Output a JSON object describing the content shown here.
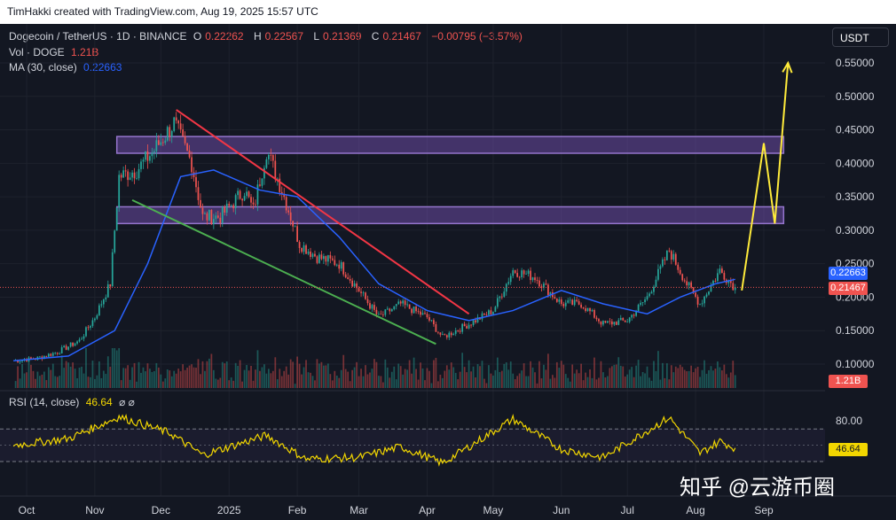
{
  "header": {
    "text": "TimHakki created with TradingView.com, Aug 19, 2025 15:57 UTC"
  },
  "legend": {
    "symbol": "Dogecoin / TetherUS · 1D · BINANCE",
    "o_label": "O",
    "o": "0.22262",
    "h_label": "H",
    "h": "0.22567",
    "l_label": "L",
    "l": "0.21369",
    "c_label": "C",
    "c": "0.21467",
    "change": "−0.00795 (−3.57%)",
    "vol_label": "Vol · DOGE",
    "vol": "1.21B",
    "ma_label": "MA (30, close)",
    "ma": "0.22663"
  },
  "currency_button": "USDT",
  "price_tags": {
    "ma": "0.22663",
    "close": "0.21467",
    "volume": "1.21B",
    "rsi": "46.64"
  },
  "rsi_legend": {
    "label": "RSI (14, close)",
    "value": "46.64",
    "icons": "⌀ ⌀"
  },
  "watermark": "知乎 @云游币圈",
  "colors": {
    "up": "#26a69a",
    "down": "#ef5350",
    "ma": "#2962ff",
    "rsi": "#f2d600",
    "zone": "#7e57c2",
    "projection": "#ffeb3b",
    "support": "#4caf50",
    "resistance": "#f23645"
  },
  "chart_data": {
    "type": "candlestick",
    "title": "Dogecoin / TetherUS · 1D · BINANCE",
    "x_ticks": [
      "Oct",
      "Nov",
      "Dec",
      "2025",
      "Feb",
      "Mar",
      "Apr",
      "May",
      "Jun",
      "Jul",
      "Aug",
      "Sep"
    ],
    "y_ticks": [
      "0.55000",
      "0.50000",
      "0.45000",
      "0.40000",
      "0.35000",
      "0.30000",
      "0.25000",
      "0.20000",
      "0.15000",
      "0.10000"
    ],
    "ylim": [
      0.08,
      0.57
    ],
    "price_path": [
      {
        "date": "2024-09-25",
        "close": 0.105
      },
      {
        "date": "2024-10-05",
        "close": 0.108
      },
      {
        "date": "2024-10-15",
        "close": 0.118
      },
      {
        "date": "2024-10-25",
        "close": 0.135
      },
      {
        "date": "2024-11-01",
        "close": 0.17
      },
      {
        "date": "2024-11-08",
        "close": 0.22
      },
      {
        "date": "2024-11-12",
        "close": 0.38
      },
      {
        "date": "2024-11-20",
        "close": 0.39
      },
      {
        "date": "2024-11-28",
        "close": 0.42
      },
      {
        "date": "2024-12-07",
        "close": 0.46
      },
      {
        "date": "2024-12-15",
        "close": 0.4
      },
      {
        "date": "2024-12-20",
        "close": 0.32
      },
      {
        "date": "2024-12-28",
        "close": 0.32
      },
      {
        "date": "2025-01-08",
        "close": 0.36
      },
      {
        "date": "2025-01-12",
        "close": 0.33
      },
      {
        "date": "2025-01-18",
        "close": 0.42
      },
      {
        "date": "2025-01-25",
        "close": 0.36
      },
      {
        "date": "2025-02-02",
        "close": 0.28
      },
      {
        "date": "2025-02-10",
        "close": 0.26
      },
      {
        "date": "2025-02-20",
        "close": 0.25
      },
      {
        "date": "2025-03-01",
        "close": 0.21
      },
      {
        "date": "2025-03-10",
        "close": 0.17
      },
      {
        "date": "2025-03-20",
        "close": 0.19
      },
      {
        "date": "2025-04-01",
        "close": 0.17
      },
      {
        "date": "2025-04-08",
        "close": 0.14
      },
      {
        "date": "2025-04-20",
        "close": 0.16
      },
      {
        "date": "2025-05-01",
        "close": 0.18
      },
      {
        "date": "2025-05-10",
        "close": 0.24
      },
      {
        "date": "2025-05-20",
        "close": 0.23
      },
      {
        "date": "2025-06-01",
        "close": 0.19
      },
      {
        "date": "2025-06-10",
        "close": 0.19
      },
      {
        "date": "2025-06-20",
        "close": 0.16
      },
      {
        "date": "2025-07-01",
        "close": 0.165
      },
      {
        "date": "2025-07-10",
        "close": 0.2
      },
      {
        "date": "2025-07-20",
        "close": 0.27
      },
      {
        "date": "2025-07-28",
        "close": 0.22
      },
      {
        "date": "2025-08-03",
        "close": 0.19
      },
      {
        "date": "2025-08-12",
        "close": 0.24
      },
      {
        "date": "2025-08-19",
        "close": 0.21467
      }
    ],
    "ma30_path": [
      {
        "date": "2024-09-25",
        "value": 0.105
      },
      {
        "date": "2024-10-20",
        "value": 0.112
      },
      {
        "date": "2024-11-10",
        "value": 0.15
      },
      {
        "date": "2024-11-25",
        "value": 0.25
      },
      {
        "date": "2024-12-10",
        "value": 0.38
      },
      {
        "date": "2024-12-25",
        "value": 0.39
      },
      {
        "date": "2025-01-15",
        "value": 0.36
      },
      {
        "date": "2025-02-01",
        "value": 0.35
      },
      {
        "date": "2025-02-20",
        "value": 0.29
      },
      {
        "date": "2025-03-10",
        "value": 0.22
      },
      {
        "date": "2025-04-01",
        "value": 0.18
      },
      {
        "date": "2025-04-20",
        "value": 0.165
      },
      {
        "date": "2025-05-10",
        "value": 0.18
      },
      {
        "date": "2025-06-01",
        "value": 0.21
      },
      {
        "date": "2025-06-20",
        "value": 0.19
      },
      {
        "date": "2025-07-10",
        "value": 0.175
      },
      {
        "date": "2025-07-25",
        "value": 0.2
      },
      {
        "date": "2025-08-10",
        "value": 0.22
      },
      {
        "date": "2025-08-19",
        "value": 0.22663
      }
    ],
    "zones": [
      {
        "from": "2024-11-11",
        "to": "2025-09-10",
        "low": 0.415,
        "high": 0.44
      },
      {
        "from": "2024-11-11",
        "to": "2025-09-10",
        "low": 0.31,
        "high": 0.335
      }
    ],
    "resistance_line": [
      {
        "date": "2024-12-08",
        "value": 0.48
      },
      {
        "date": "2025-04-20",
        "value": 0.175
      }
    ],
    "support_line": [
      {
        "date": "2024-11-18",
        "value": 0.345
      },
      {
        "date": "2025-04-05",
        "value": 0.13
      }
    ],
    "projection": [
      {
        "date": "2025-08-22",
        "value": 0.21
      },
      {
        "date": "2025-09-01",
        "value": 0.43
      },
      {
        "date": "2025-09-06",
        "value": 0.31
      },
      {
        "date": "2025-09-12",
        "value": 0.55
      }
    ],
    "volume_label": "1.21B",
    "rsi": {
      "label": "RSI (14, close)",
      "value": 46.64,
      "ticks": [
        "80.00"
      ],
      "bands": [
        70,
        30
      ],
      "path": [
        {
          "date": "2024-09-25",
          "value": 50
        },
        {
          "date": "2024-10-20",
          "value": 58
        },
        {
          "date": "2024-11-12",
          "value": 85
        },
        {
          "date": "2024-12-05",
          "value": 65
        },
        {
          "date": "2024-12-20",
          "value": 38
        },
        {
          "date": "2025-01-18",
          "value": 62
        },
        {
          "date": "2025-02-05",
          "value": 33
        },
        {
          "date": "2025-03-01",
          "value": 35
        },
        {
          "date": "2025-03-20",
          "value": 48
        },
        {
          "date": "2025-04-08",
          "value": 28
        },
        {
          "date": "2025-05-10",
          "value": 82
        },
        {
          "date": "2025-06-01",
          "value": 45
        },
        {
          "date": "2025-06-20",
          "value": 35
        },
        {
          "date": "2025-07-20",
          "value": 84
        },
        {
          "date": "2025-08-03",
          "value": 40
        },
        {
          "date": "2025-08-12",
          "value": 55
        },
        {
          "date": "2025-08-19",
          "value": 46.64
        }
      ]
    }
  }
}
